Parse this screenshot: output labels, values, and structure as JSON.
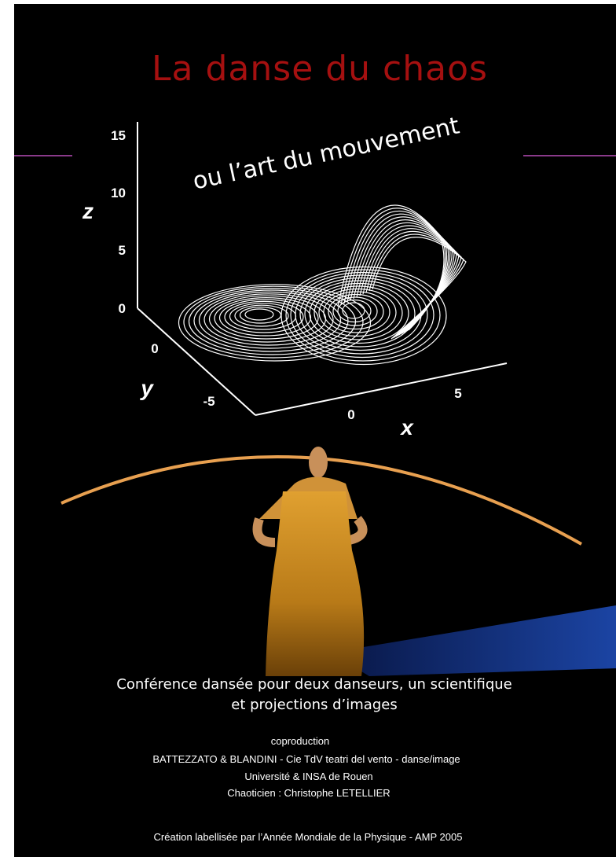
{
  "poster": {
    "title": "La danse du chaos",
    "subtitle": "ou l’art du mouvement",
    "plot": {
      "z_label": "z",
      "z_ticks": [
        "15",
        "10",
        "5",
        "0"
      ],
      "y_label": "y",
      "y_ticks": [
        "0",
        "-5"
      ],
      "x_label": "x",
      "x_ticks": [
        "0",
        "5"
      ]
    },
    "description": [
      "Conférence dansée pour deux danseurs, un scientifique",
      "et projections d’images"
    ],
    "credits": [
      "coproduction",
      "BATTEZZATO & BLANDINI - Cie TdV teatri del vento - danse/image",
      "Université & INSA de Rouen",
      "Chaoticien : Christophe LETELLIER"
    ],
    "footer": "Création labellisée par l’Année Mondiale de la Physique - AMP 2005"
  }
}
